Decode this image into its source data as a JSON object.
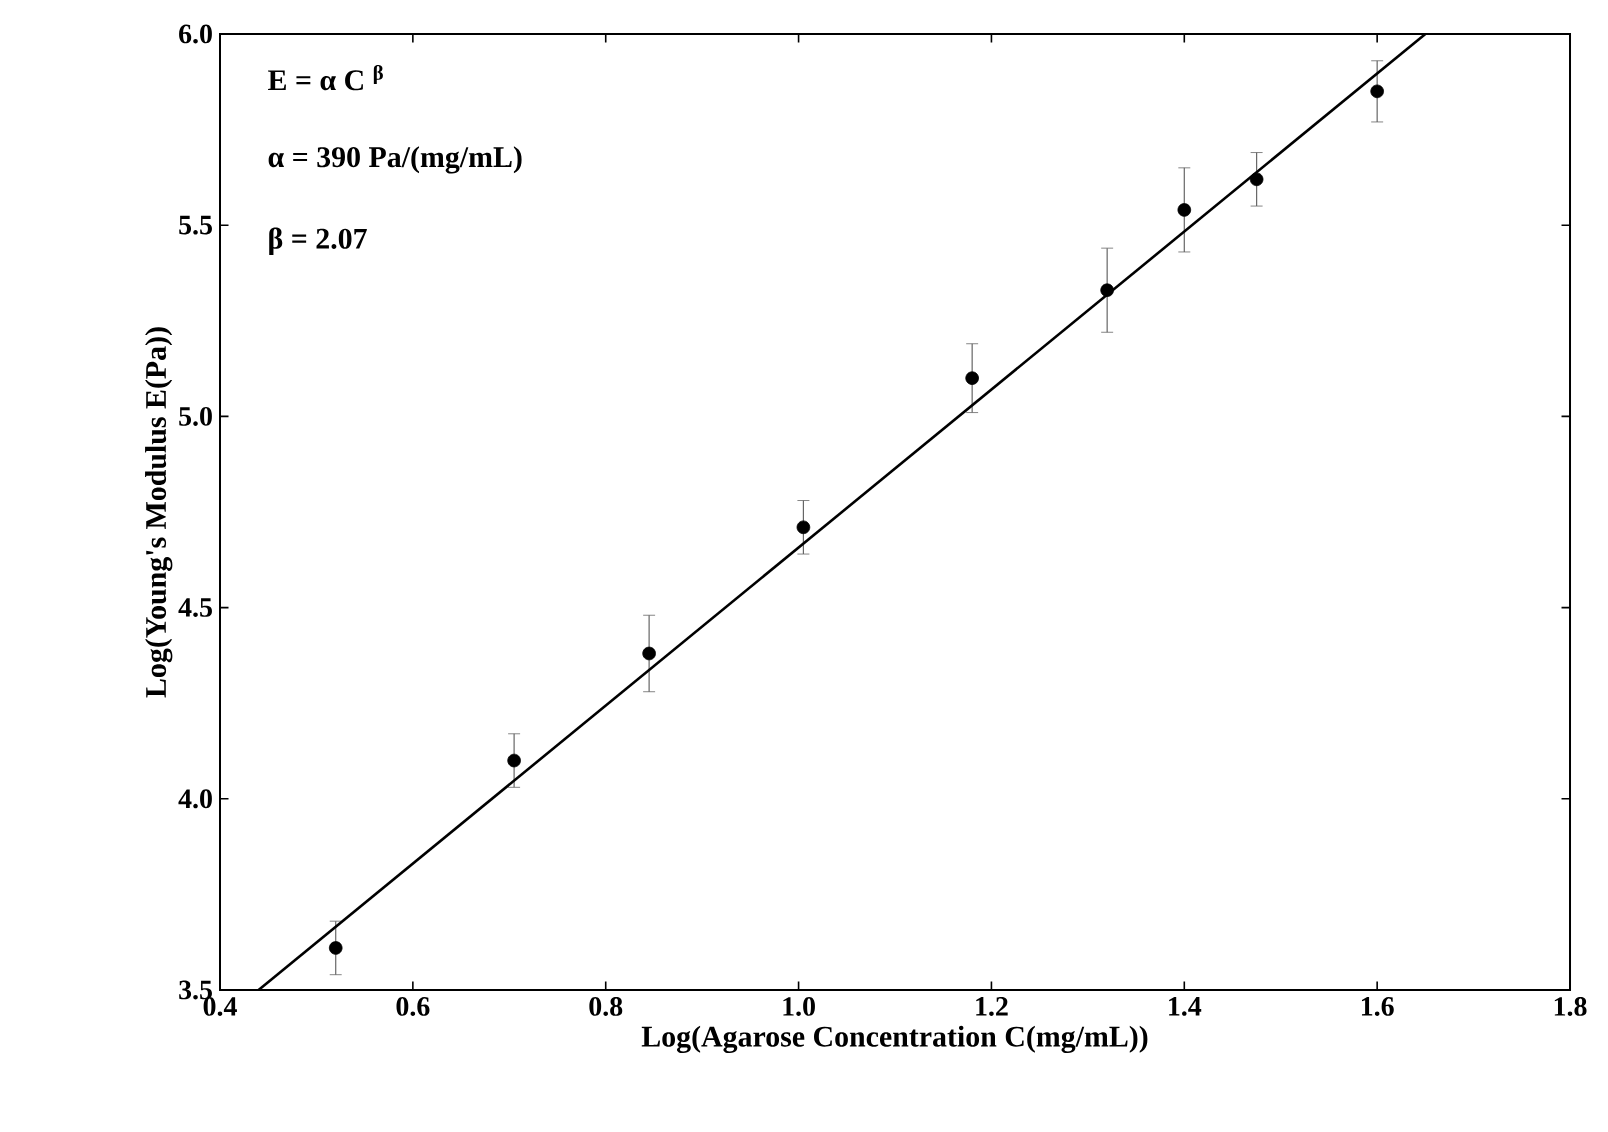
{
  "chart_data": {
    "type": "scatter",
    "xlabel": "Log(Agarose Concentration C(mg/mL))",
    "ylabel": "Log(Young's Modulus E(Pa))",
    "annotations": [
      "E = α C $^{β}$",
      "α = 390 Pa/(mg/mL)",
      "β = 2.07"
    ],
    "xlim": [
      0.4,
      1.8
    ],
    "ylim": [
      3.5,
      6.0
    ],
    "xticks": [
      {
        "value": 0.4,
        "label": "0.4"
      },
      {
        "value": 0.6,
        "label": "0.6"
      },
      {
        "value": 0.8,
        "label": "0.8"
      },
      {
        "value": 1.0,
        "label": "1.0"
      },
      {
        "value": 1.2,
        "label": "1.2"
      },
      {
        "value": 1.4,
        "label": "1.4"
      },
      {
        "value": 1.6,
        "label": "1.6"
      },
      {
        "value": 1.8,
        "label": "1.8"
      }
    ],
    "yticks": [
      {
        "value": 3.5,
        "label": "3.5"
      },
      {
        "value": 4.0,
        "label": "4.0"
      },
      {
        "value": 4.5,
        "label": "4.5"
      },
      {
        "value": 5.0,
        "label": "5.0"
      },
      {
        "value": 5.5,
        "label": "5.5"
      },
      {
        "value": 6.0,
        "label": "6.0"
      }
    ],
    "series": [
      {
        "color": "#000000",
        "marker": "circle",
        "x": [
          0.52,
          0.705,
          0.845,
          1.005,
          1.18,
          1.32,
          1.4,
          1.475,
          1.6
        ],
        "values": [
          3.61,
          4.1,
          4.38,
          4.71,
          5.1,
          5.33,
          5.54,
          5.62,
          5.85
        ],
        "errors": [
          0.07,
          0.07,
          0.1,
          0.07,
          0.09,
          0.11,
          0.11,
          0.07,
          0.08
        ]
      },
      {
        "type": "line",
        "color": "#000000",
        "marker": "none",
        "line_style": "solid",
        "x": [
          0.44,
          1.65
        ],
        "values": [
          3.5,
          6.0
        ]
      }
    ]
  }
}
